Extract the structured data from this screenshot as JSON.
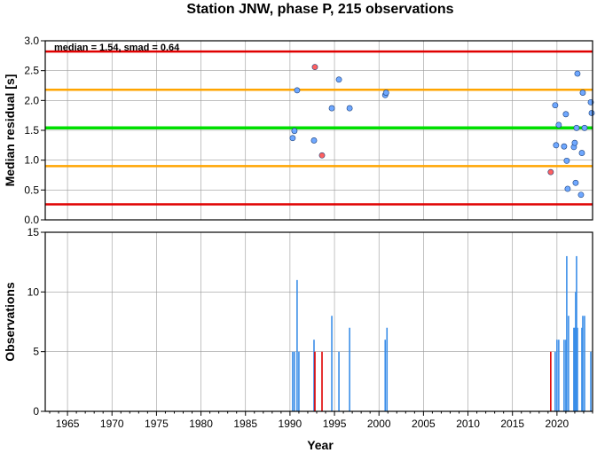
{
  "title": "Station JNW, phase P, 215 observations",
  "colors": {
    "median_line": "#00e000",
    "smad_lines": "#ffa500",
    "outer_lines": "#e00000",
    "normal_point": "#6fa8ff",
    "outlier_point": "#ff6060",
    "normal_bar": "#3b8ee8",
    "outlier_bar": "#e00000"
  },
  "chart_data": [
    {
      "type": "scatter",
      "ylabel": "Median residual [s]",
      "xlim": [
        1962.5,
        2024
      ],
      "ylim": [
        0,
        3
      ],
      "xticks": [
        1965,
        1970,
        1975,
        1980,
        1985,
        1990,
        1995,
        2000,
        2005,
        2010,
        2015,
        2020
      ],
      "yticks": [
        "0.0",
        "0.5",
        "1.0",
        "1.5",
        "2.0",
        "2.5",
        "3.0"
      ],
      "grid": true,
      "annotation": "median = 1.54, smad = 0.64",
      "hlines": [
        {
          "y": 2.82,
          "role": "outer"
        },
        {
          "y": 2.18,
          "role": "smad"
        },
        {
          "y": 1.54,
          "role": "median"
        },
        {
          "y": 0.9,
          "role": "smad"
        },
        {
          "y": 0.26,
          "role": "outer"
        }
      ],
      "points": [
        {
          "x": 1990.3,
          "y": 1.37,
          "outlier": false
        },
        {
          "x": 1990.5,
          "y": 1.49,
          "outlier": false
        },
        {
          "x": 1990.8,
          "y": 2.17,
          "outlier": false
        },
        {
          "x": 1992.8,
          "y": 2.56,
          "outlier": true
        },
        {
          "x": 1992.7,
          "y": 1.33,
          "outlier": false
        },
        {
          "x": 1993.6,
          "y": 1.08,
          "outlier": true
        },
        {
          "x": 1994.7,
          "y": 1.87,
          "outlier": false
        },
        {
          "x": 1995.5,
          "y": 2.35,
          "outlier": false
        },
        {
          "x": 1996.7,
          "y": 1.87,
          "outlier": false
        },
        {
          "x": 2000.7,
          "y": 2.09,
          "outlier": false
        },
        {
          "x": 2000.8,
          "y": 2.13,
          "outlier": false
        },
        {
          "x": 2019.3,
          "y": 0.8,
          "outlier": true
        },
        {
          "x": 2019.8,
          "y": 1.92,
          "outlier": false
        },
        {
          "x": 2019.9,
          "y": 1.25,
          "outlier": false
        },
        {
          "x": 2020.2,
          "y": 1.59,
          "outlier": false
        },
        {
          "x": 2020.8,
          "y": 1.23,
          "outlier": false
        },
        {
          "x": 2021.0,
          "y": 1.77,
          "outlier": false
        },
        {
          "x": 2021.1,
          "y": 0.99,
          "outlier": false
        },
        {
          "x": 2021.2,
          "y": 0.52,
          "outlier": false
        },
        {
          "x": 2021.9,
          "y": 1.22,
          "outlier": false
        },
        {
          "x": 2022.0,
          "y": 1.29,
          "outlier": false
        },
        {
          "x": 2022.1,
          "y": 0.62,
          "outlier": false
        },
        {
          "x": 2022.2,
          "y": 1.54,
          "outlier": false
        },
        {
          "x": 2022.3,
          "y": 2.45,
          "outlier": false
        },
        {
          "x": 2022.7,
          "y": 0.42,
          "outlier": false
        },
        {
          "x": 2022.8,
          "y": 1.12,
          "outlier": false
        },
        {
          "x": 2022.9,
          "y": 2.13,
          "outlier": false
        },
        {
          "x": 2023.1,
          "y": 1.54,
          "outlier": false
        },
        {
          "x": 2023.8,
          "y": 1.97,
          "outlier": false
        },
        {
          "x": 2023.9,
          "y": 1.79,
          "outlier": false
        }
      ]
    },
    {
      "type": "bar",
      "xlabel": "Year",
      "ylabel": "Observations",
      "xlim": [
        1962.5,
        2024
      ],
      "ylim": [
        0,
        15
      ],
      "xticks": [
        1965,
        1970,
        1975,
        1980,
        1985,
        1990,
        1995,
        2000,
        2005,
        2010,
        2015,
        2020
      ],
      "yticks": [
        "0",
        "5",
        "10",
        "15"
      ],
      "grid": true,
      "bars": [
        {
          "x": 1990.3,
          "value": 5,
          "outlier": false
        },
        {
          "x": 1990.5,
          "value": 5,
          "outlier": false
        },
        {
          "x": 1990.8,
          "value": 11,
          "outlier": false
        },
        {
          "x": 1991.0,
          "value": 5,
          "outlier": false
        },
        {
          "x": 1992.7,
          "value": 6,
          "outlier": false
        },
        {
          "x": 1992.8,
          "value": 5,
          "outlier": true
        },
        {
          "x": 1993.6,
          "value": 5,
          "outlier": true
        },
        {
          "x": 1994.7,
          "value": 8,
          "outlier": false
        },
        {
          "x": 1995.5,
          "value": 5,
          "outlier": false
        },
        {
          "x": 1996.7,
          "value": 7,
          "outlier": false
        },
        {
          "x": 2000.7,
          "value": 6,
          "outlier": false
        },
        {
          "x": 2000.9,
          "value": 7,
          "outlier": false
        },
        {
          "x": 2019.3,
          "value": 5,
          "outlier": true
        },
        {
          "x": 2019.8,
          "value": 5,
          "outlier": false
        },
        {
          "x": 2020.0,
          "value": 6,
          "outlier": false
        },
        {
          "x": 2020.2,
          "value": 6,
          "outlier": false
        },
        {
          "x": 2020.8,
          "value": 6,
          "outlier": false
        },
        {
          "x": 2021.0,
          "value": 6,
          "outlier": false
        },
        {
          "x": 2021.1,
          "value": 13,
          "outlier": false
        },
        {
          "x": 2021.3,
          "value": 8,
          "outlier": false
        },
        {
          "x": 2021.9,
          "value": 7,
          "outlier": false
        },
        {
          "x": 2022.0,
          "value": 7,
          "outlier": false
        },
        {
          "x": 2022.1,
          "value": 10,
          "outlier": false
        },
        {
          "x": 2022.2,
          "value": 13,
          "outlier": false
        },
        {
          "x": 2022.3,
          "value": 7,
          "outlier": false
        },
        {
          "x": 2022.8,
          "value": 7,
          "outlier": false
        },
        {
          "x": 2022.9,
          "value": 8,
          "outlier": false
        },
        {
          "x": 2023.1,
          "value": 8,
          "outlier": false
        },
        {
          "x": 2023.8,
          "value": 5,
          "outlier": false
        }
      ]
    }
  ]
}
